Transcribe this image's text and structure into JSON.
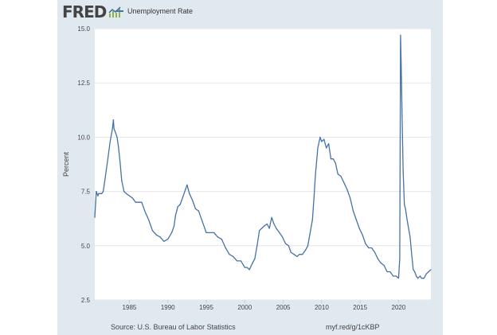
{
  "header": {
    "logo_text": "FRED",
    "logo_icon": "chart-line-icon",
    "legend_label": "Unemployment Rate"
  },
  "footer": {
    "source": "Source: U.S. Bureau of Labor Statistics",
    "short_url": "myf.red/g/1cKBP"
  },
  "colors": {
    "series": "#4572a7",
    "frame": "#e1e9f0",
    "plot_bg": "#ffffff",
    "grid": "#e6e6e6",
    "logo_text": "#444444"
  },
  "chart_data": {
    "type": "line",
    "title": "",
    "xlabel": "",
    "ylabel": "Percent",
    "xlim": [
      1980.5,
      2024.2
    ],
    "ylim": [
      2.5,
      15.0
    ],
    "grid": true,
    "legend": "top-left",
    "y_ticks": [
      "2.5",
      "5.0",
      "7.5",
      "10.0",
      "12.5",
      "15.0"
    ],
    "x_ticks": [
      "1985",
      "1990",
      "1995",
      "2000",
      "2005",
      "2010",
      "2015",
      "2020"
    ],
    "series": [
      {
        "name": "Unemployment Rate",
        "x": [
          1980.5,
          1980.7,
          1980.9,
          1981.0,
          1981.2,
          1981.4,
          1981.6,
          1981.8,
          1982.0,
          1982.2,
          1982.5,
          1982.8,
          1982.92,
          1983.0,
          1983.2,
          1983.4,
          1983.6,
          1983.8,
          1984.0,
          1984.3,
          1984.6,
          1985.0,
          1985.4,
          1985.8,
          1986.2,
          1986.6,
          1987.0,
          1987.5,
          1988.0,
          1988.5,
          1989.0,
          1989.5,
          1990.0,
          1990.5,
          1990.8,
          1991.0,
          1991.3,
          1991.6,
          1992.0,
          1992.3,
          1992.5,
          1992.8,
          1993.2,
          1993.6,
          1994.0,
          1994.5,
          1995.0,
          1995.5,
          1996.0,
          1996.5,
          1997.0,
          1997.5,
          1998.0,
          1998.5,
          1999.0,
          1999.5,
          2000.0,
          2000.3,
          2000.6,
          2001.0,
          2001.3,
          2001.6,
          2001.9,
          2002.2,
          2002.5,
          2002.9,
          2003.2,
          2003.5,
          2003.8,
          2004.1,
          2004.5,
          2004.9,
          2005.3,
          2005.7,
          2006.0,
          2006.4,
          2006.8,
          2007.1,
          2007.5,
          2007.9,
          2008.2,
          2008.5,
          2008.8,
          2009.0,
          2009.2,
          2009.5,
          2009.8,
          2010.0,
          2010.3,
          2010.6,
          2010.9,
          2011.2,
          2011.5,
          2011.8,
          2012.1,
          2012.5,
          2012.9,
          2013.3,
          2013.7,
          2014.1,
          2014.5,
          2014.9,
          2015.3,
          2015.7,
          2016.1,
          2016.5,
          2016.9,
          2017.3,
          2017.7,
          2018.1,
          2018.5,
          2018.9,
          2019.3,
          2019.7,
          2020.0,
          2020.15,
          2020.25,
          2020.35,
          2020.45,
          2020.6,
          2020.75,
          2020.9,
          2021.1,
          2021.3,
          2021.5,
          2021.7,
          2021.9,
          2022.1,
          2022.3,
          2022.5,
          2022.8,
          2023.0,
          2023.3,
          2023.6,
          2023.9,
          2024.2
        ],
        "y": [
          6.3,
          7.5,
          7.3,
          7.4,
          7.4,
          7.4,
          7.5,
          8.0,
          8.5,
          9.0,
          9.8,
          10.4,
          10.8,
          10.4,
          10.2,
          10.0,
          9.5,
          8.8,
          8.0,
          7.5,
          7.4,
          7.3,
          7.2,
          7.0,
          7.0,
          7.0,
          6.6,
          6.2,
          5.7,
          5.5,
          5.4,
          5.2,
          5.3,
          5.6,
          5.9,
          6.4,
          6.8,
          6.9,
          7.3,
          7.6,
          7.8,
          7.4,
          7.1,
          6.7,
          6.6,
          6.1,
          5.6,
          5.6,
          5.6,
          5.4,
          5.3,
          4.9,
          4.6,
          4.5,
          4.3,
          4.3,
          4.0,
          4.0,
          3.9,
          4.2,
          4.4,
          5.0,
          5.7,
          5.8,
          5.9,
          6.0,
          5.8,
          6.3,
          6.0,
          5.8,
          5.6,
          5.4,
          5.1,
          5.0,
          4.7,
          4.6,
          4.5,
          4.6,
          4.6,
          4.8,
          5.0,
          5.6,
          6.2,
          7.2,
          8.3,
          9.5,
          10.0,
          9.8,
          9.9,
          9.5,
          9.7,
          9.0,
          9.0,
          8.8,
          8.3,
          8.2,
          7.9,
          7.6,
          7.2,
          6.6,
          6.2,
          5.8,
          5.5,
          5.1,
          4.9,
          4.9,
          4.7,
          4.4,
          4.2,
          4.1,
          3.8,
          3.8,
          3.6,
          3.6,
          3.5,
          4.4,
          14.7,
          13.2,
          11.0,
          8.4,
          6.9,
          6.7,
          6.2,
          5.8,
          5.4,
          4.6,
          3.9,
          3.8,
          3.6,
          3.5,
          3.6,
          3.5,
          3.5,
          3.7,
          3.8,
          3.9
        ]
      }
    ]
  }
}
